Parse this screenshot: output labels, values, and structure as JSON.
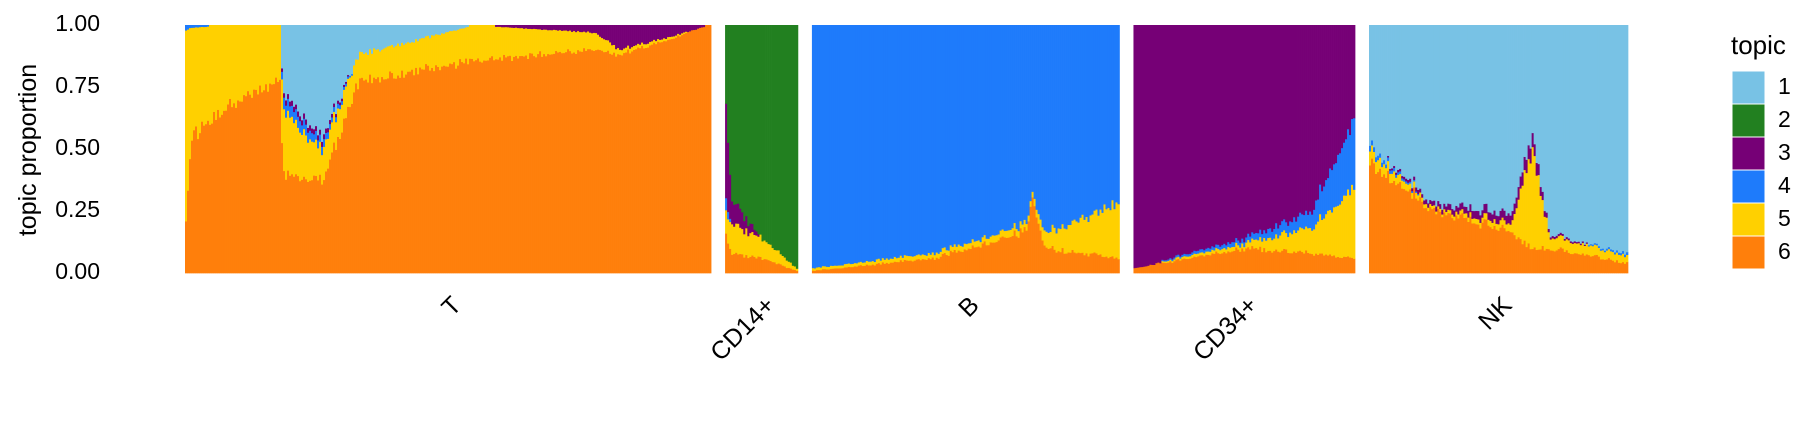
{
  "chart_data": {
    "type": "structure",
    "ylabel": "topic proportion",
    "ylim": [
      0,
      1
    ],
    "yticks": [
      "0.00",
      "0.25",
      "0.50",
      "0.75",
      "1.00"
    ],
    "legend": {
      "title": "topic",
      "position": "right",
      "entries": [
        {
          "label": "1",
          "color": "#78C2E5"
        },
        {
          "label": "2",
          "color": "#228020"
        },
        {
          "label": "3",
          "color": "#760076"
        },
        {
          "label": "4",
          "color": "#1E7BFB"
        },
        {
          "label": "5",
          "color": "#FFD000"
        },
        {
          "label": "6",
          "color": "#FF7F0B"
        }
      ]
    },
    "groups": [
      {
        "label": "T",
        "weight": 520,
        "profile": [
          {
            "x": 0.0,
            "p": [
              0.0,
              0.0,
              0.0,
              0.02,
              0.78,
              0.2
            ]
          },
          {
            "x": 0.01,
            "p": [
              0.0,
              0.0,
              0.0,
              0.01,
              0.44,
              0.55
            ]
          },
          {
            "x": 0.08,
            "p": [
              0.0,
              0.0,
              0.0,
              0.0,
              0.32,
              0.68
            ]
          },
          {
            "x": 0.18,
            "p": [
              0.0,
              0.0,
              0.0,
              0.0,
              0.23,
              0.77
            ]
          },
          {
            "x": 0.185,
            "p": [
              0.28,
              0.0,
              0.02,
              0.05,
              0.25,
              0.4
            ]
          },
          {
            "x": 0.26,
            "p": [
              0.45,
              0.0,
              0.02,
              0.03,
              0.12,
              0.38
            ]
          },
          {
            "x": 0.33,
            "p": [
              0.12,
              0.0,
              0.0,
              0.0,
              0.11,
              0.77
            ]
          },
          {
            "x": 0.55,
            "p": [
              0.0,
              0.0,
              0.0,
              0.0,
              0.14,
              0.86
            ]
          },
          {
            "x": 0.78,
            "p": [
              0.0,
              0.0,
              0.03,
              0.0,
              0.07,
              0.9
            ]
          },
          {
            "x": 0.83,
            "p": [
              0.0,
              0.0,
              0.1,
              0.0,
              0.02,
              0.88
            ]
          },
          {
            "x": 1.0,
            "p": [
              0.0,
              0.0,
              0.0,
              0.0,
              0.0,
              1.0
            ]
          }
        ]
      },
      {
        "label": "CD14+",
        "weight": 72,
        "profile": [
          {
            "x": 0.0,
            "p": [
              0.0,
              0.3,
              0.4,
              0.05,
              0.1,
              0.15
            ]
          },
          {
            "x": 0.08,
            "p": [
              0.0,
              0.7,
              0.1,
              0.0,
              0.12,
              0.08
            ]
          },
          {
            "x": 0.5,
            "p": [
              0.0,
              0.86,
              0.0,
              0.0,
              0.08,
              0.06
            ]
          },
          {
            "x": 1.0,
            "p": [
              0.0,
              0.98,
              0.0,
              0.0,
              0.01,
              0.01
            ]
          }
        ]
      },
      {
        "label": "B",
        "weight": 304,
        "profile": [
          {
            "x": 0.0,
            "p": [
              0.0,
              0.0,
              0.0,
              0.98,
              0.01,
              0.01
            ]
          },
          {
            "x": 0.4,
            "p": [
              0.0,
              0.0,
              0.0,
              0.92,
              0.02,
              0.06
            ]
          },
          {
            "x": 0.7,
            "p": [
              0.0,
              0.0,
              0.0,
              0.8,
              0.03,
              0.17
            ]
          },
          {
            "x": 0.72,
            "p": [
              0.0,
              0.0,
              0.0,
              0.68,
              0.02,
              0.3
            ]
          },
          {
            "x": 0.76,
            "p": [
              0.0,
              0.0,
              0.0,
              0.84,
              0.06,
              0.1
            ]
          },
          {
            "x": 1.0,
            "p": [
              0.0,
              0.0,
              0.0,
              0.72,
              0.22,
              0.06
            ]
          }
        ]
      },
      {
        "label": "CD34+",
        "weight": 219,
        "profile": [
          {
            "x": 0.0,
            "p": [
              0.0,
              0.0,
              0.98,
              0.0,
              0.0,
              0.02
            ]
          },
          {
            "x": 0.5,
            "p": [
              0.0,
              0.0,
              0.86,
              0.02,
              0.02,
              0.1
            ]
          },
          {
            "x": 0.8,
            "p": [
              0.0,
              0.0,
              0.76,
              0.06,
              0.1,
              0.08
            ]
          },
          {
            "x": 1.0,
            "p": [
              0.0,
              0.0,
              0.38,
              0.28,
              0.28,
              0.06
            ]
          }
        ]
      },
      {
        "label": "NK",
        "weight": 256,
        "profile": [
          {
            "x": 0.0,
            "p": [
              0.48,
              0.0,
              0.0,
              0.02,
              0.05,
              0.45
            ]
          },
          {
            "x": 0.25,
            "p": [
              0.72,
              0.0,
              0.02,
              0.0,
              0.01,
              0.25
            ]
          },
          {
            "x": 0.55,
            "p": [
              0.76,
              0.0,
              0.04,
              0.0,
              0.03,
              0.17
            ]
          },
          {
            "x": 0.63,
            "p": [
              0.44,
              0.0,
              0.06,
              0.0,
              0.4,
              0.1
            ]
          },
          {
            "x": 0.7,
            "p": [
              0.84,
              0.0,
              0.01,
              0.0,
              0.05,
              0.1
            ]
          },
          {
            "x": 1.0,
            "p": [
              0.92,
              0.0,
              0.0,
              0.01,
              0.03,
              0.04
            ]
          }
        ]
      }
    ]
  }
}
